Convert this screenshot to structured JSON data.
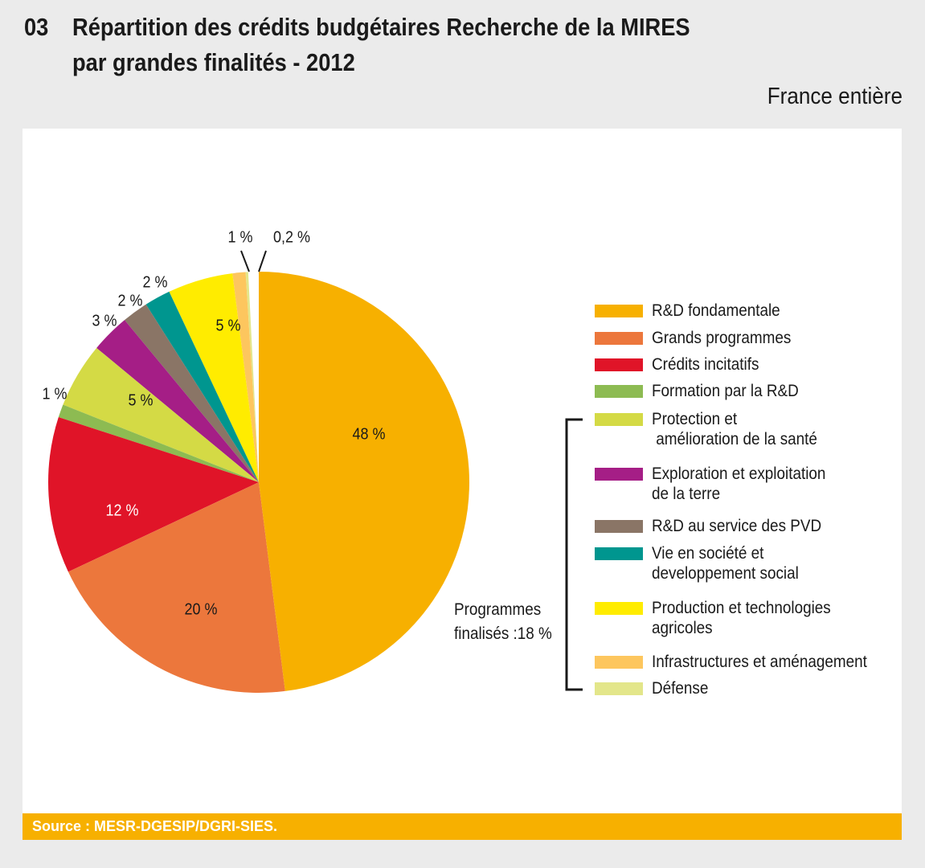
{
  "header": {
    "number": "03",
    "title_line1": "Répartition des crédits budgétaires Recherche de la MIRES",
    "title_line2": "par grandes finalités - 2012",
    "scope": "France entière"
  },
  "source": "Source : MESR-DGESIP/DGRI-SIES.",
  "chart_data": {
    "type": "pie",
    "title": "Répartition des crédits budgétaires Recherche de la MIRES par grandes finalités - 2012",
    "start": "12 o'clock, clockwise",
    "slices": [
      {
        "name": "R&D fondamentale",
        "value": 48,
        "label": "48 %",
        "color": "#f7b000"
      },
      {
        "name": "Grands programmes",
        "value": 20,
        "label": "20 %",
        "color": "#ec773c"
      },
      {
        "name": "Crédits incitatifs",
        "value": 12,
        "label": "12 %",
        "color": "#e01428"
      },
      {
        "name": "Formation par la R&D",
        "value": 1,
        "label": "1 %",
        "color": "#8dbb52"
      },
      {
        "name": "Protection et\n amélioration de la santé",
        "value": 5,
        "label": "5 %",
        "color": "#d4da45"
      },
      {
        "name": "Exploration et exploitation\nde la terre",
        "value": 3,
        "label": "3 %",
        "color": "#a51e86"
      },
      {
        "name": "R&D au service des PVD",
        "value": 2,
        "label": "2 %",
        "color": "#8a7566"
      },
      {
        "name": "Vie en société et\ndeveloppement social",
        "value": 2,
        "label": "2 %",
        "color": "#00968f"
      },
      {
        "name": "Production et technologies\nagricoles",
        "value": 5,
        "label": "5 %",
        "color": "#ffec00"
      },
      {
        "name": "Infrastructures et aménagement",
        "value": 1,
        "label": "1 %",
        "color": "#fdc65e"
      },
      {
        "name": "Défense",
        "value": 0.2,
        "label": "0,2 %",
        "color": "#e3e68a"
      }
    ],
    "legend": "right",
    "group_annotation": "Programmes\nfinalisés :18 %"
  }
}
